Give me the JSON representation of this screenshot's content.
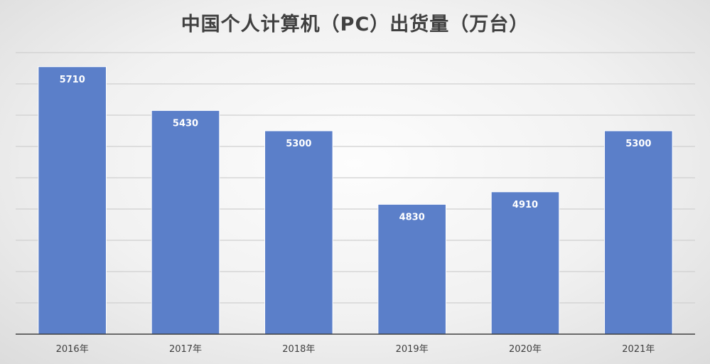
{
  "chart_data": {
    "type": "bar",
    "title": "中国个人计算机（PC）出货量（万台）",
    "categories": [
      "2016年",
      "2017年",
      "2018年",
      "2019年",
      "2020年",
      "2021年"
    ],
    "values": [
      5710,
      5430,
      5300,
      4830,
      4910,
      5300
    ],
    "ylim": [
      4000,
      5800
    ],
    "grid": true,
    "legend": "none",
    "data_labels": true,
    "bar_color": "#5b7fc9",
    "label_color": "#ffffff",
    "axis_color": "#404040",
    "grid_color": "#d0d0d0"
  }
}
